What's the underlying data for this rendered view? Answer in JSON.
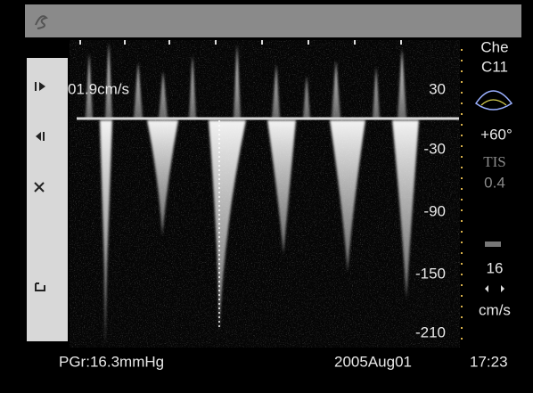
{
  "display": {
    "velocity": "01.9cm/s",
    "scale": [
      "30",
      "-30",
      "-90",
      "-150",
      "-210"
    ]
  },
  "panel": {
    "probe": "Che",
    "preset": "C11",
    "angle": "+60°",
    "tis_label": "TIS",
    "tis_value": "0.4",
    "value": "16",
    "unit": "cm/s"
  },
  "footer": {
    "pgr": "PGr:16.3mmHg",
    "date": "2005Aug01",
    "time": "17:23"
  }
}
